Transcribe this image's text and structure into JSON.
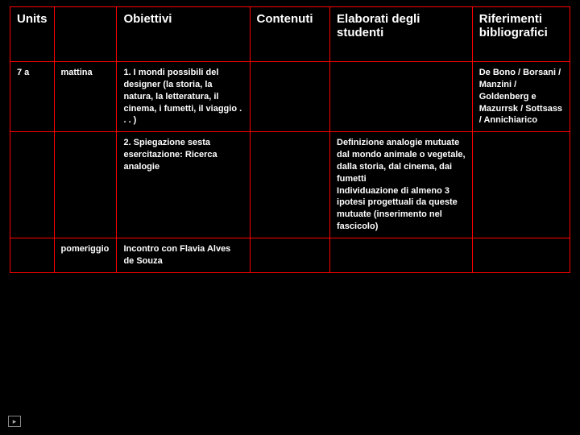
{
  "headers": {
    "units": "Units",
    "time": "",
    "obiettivi": "Obiettivi",
    "contenuti": "Contenuti",
    "elaborati": "Elaborati degli studenti",
    "riferimenti": "Riferimenti bibliografici"
  },
  "rows": [
    {
      "units": "7 a",
      "time": "mattina",
      "obiettivi": "1. I mondi possibili del designer (la storia, la natura, la letteratura, il cinema, i fumetti, il viaggio . . . )",
      "contenuti": "",
      "elaborati": "",
      "riferimenti": "De Bono / Borsani / Manzini / Goldenberg e Mazurrsk / Sottsass / Annichiarico"
    },
    {
      "units": "",
      "time": "",
      "obiettivi": "2. Spiegazione sesta esercitazione: Ricerca analogie",
      "contenuti": "",
      "elaborati": "Definizione analogie mutuate dal mondo animale o vegetale, dalla storia, dal cinema, dai fumetti\nIndividuazione di almeno 3 ipotesi progettuali da queste mutuate (inserimento nel fascicolo)",
      "riferimenti": ""
    },
    {
      "units": "",
      "time": "pomeriggio",
      "obiettivi": "Incontro con Flavia Alves de Souza",
      "contenuti": "",
      "elaborati": "",
      "riferimenti": ""
    }
  ],
  "style": {
    "background": "#000000",
    "border_color": "#ff0000",
    "text_color": "#ffffff",
    "header_fontsize": 15,
    "cell_fontsize": 11
  }
}
